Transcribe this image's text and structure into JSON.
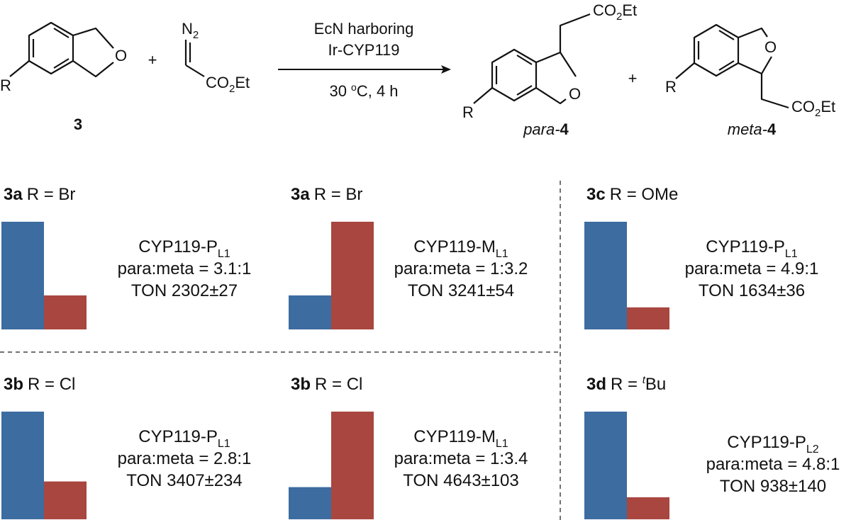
{
  "scheme": {
    "substrate": {
      "atom_o": "O",
      "r": "R",
      "label": "3"
    },
    "plus": "+",
    "diazo": {
      "n": "N",
      "n_sub": "2",
      "co": "CO",
      "co_sub": "2",
      "et": "Et"
    },
    "conditions": {
      "line1": "EcN harboring",
      "line2": "Ir-CYP119",
      "temp": "30 ",
      "temp_sup": "o",
      "temp_rest": "C, 4 h"
    },
    "para_product": {
      "atom_o": "O",
      "r": "R",
      "co": "CO",
      "co_sub": "2",
      "et": "Et",
      "label_prefix": "para-",
      "label_num": "4"
    },
    "plus2": "+",
    "meta_product": {
      "atom_o": "O",
      "r": "R",
      "co": "CO",
      "co_sub": "2",
      "et": "Et",
      "label_prefix": "meta-",
      "label_num": "4"
    }
  },
  "colors": [
    "#3c6ca0",
    "#a8463f"
  ],
  "panels": [
    {
      "compound": "3a",
      "substituent": "R  = Br",
      "enzyme": "CYP119-P",
      "enzyme_sub": "L1",
      "ratio": "para:meta = 3.1:1",
      "ton": "TON 2302±27",
      "values": [
        76,
        24
      ]
    },
    {
      "compound": "3a",
      "substituent": "R  = Br",
      "enzyme": "CYP119-M",
      "enzyme_sub": "L1",
      "ratio": "para:meta = 1:3.2",
      "ton": "TON 3241±54",
      "values": [
        24,
        76
      ]
    },
    {
      "compound": "3c",
      "substituent": "R  = OMe",
      "enzyme": "CYP119-P",
      "enzyme_sub": "L1",
      "ratio": "para:meta = 4.9:1",
      "ton": "TON 1634±36",
      "values": [
        83,
        17
      ]
    },
    {
      "compound": "3b",
      "substituent": "R  = Cl",
      "enzyme": "CYP119-P",
      "enzyme_sub": "L1",
      "ratio": "para:meta = 2.8:1",
      "ton": "TON 3407±234",
      "values": [
        74,
        26
      ]
    },
    {
      "compound": "3b",
      "substituent": "R  = Cl",
      "enzyme": "CYP119-M",
      "enzyme_sub": "L1",
      "ratio": "para:meta = 1:3.4",
      "ton": "TON 4643±103",
      "values": [
        23,
        77
      ]
    },
    {
      "compound": "3d",
      "substituent": "R  = ",
      "substituent_sup": "t",
      "substituent_rest": "Bu",
      "enzyme": "CYP119-P",
      "enzyme_sub": "L2",
      "ratio": "para:meta = 4.8:1",
      "ton": "TON 938±140",
      "values": [
        83,
        17
      ]
    }
  ]
}
